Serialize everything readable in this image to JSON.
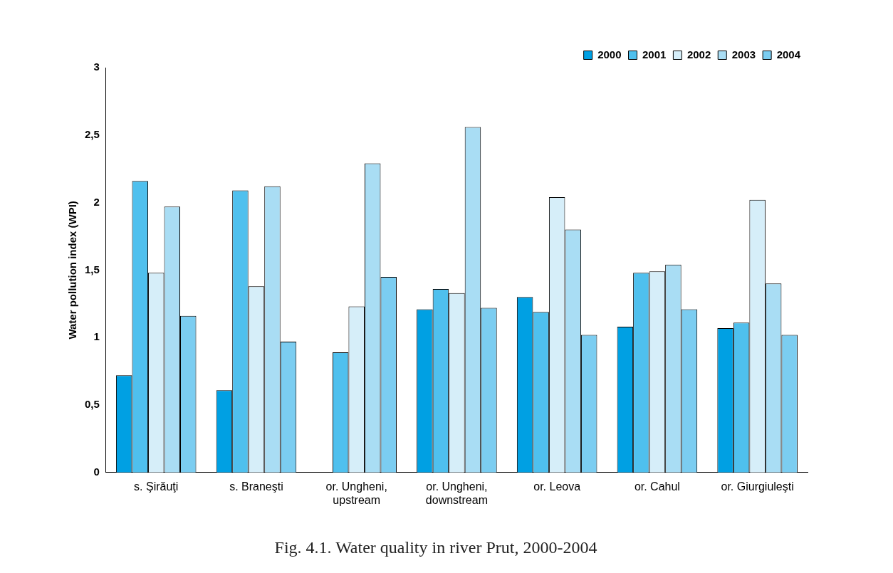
{
  "chart_data": {
    "type": "bar",
    "title": "Fig. 4.1. Water quality in river Prut, 2000-2004",
    "ylabel": "Water pollution index (WPI)",
    "categories": [
      "s. Şirăuţi",
      "s. Braneşti",
      "or. Ungheni, upstream",
      "or. Ungheni, downstream",
      "or. Leova",
      "or. Cahul",
      "or. Giurgiuleşti"
    ],
    "series": [
      {
        "name": "2000",
        "color": "#00a0e3",
        "values": [
          0.72,
          0.61,
          null,
          1.21,
          1.3,
          1.08,
          1.07
        ]
      },
      {
        "name": "2001",
        "color": "#4fc0ee",
        "values": [
          2.16,
          2.09,
          0.89,
          1.36,
          1.19,
          1.48,
          1.11
        ]
      },
      {
        "name": "2002",
        "color": "#d6eef9",
        "values": [
          1.48,
          1.38,
          1.23,
          1.33,
          2.04,
          1.49,
          2.02
        ]
      },
      {
        "name": "2003",
        "color": "#a9ddf4",
        "values": [
          1.97,
          2.12,
          2.29,
          2.56,
          1.8,
          1.54,
          1.4
        ]
      },
      {
        "name": "2004",
        "color": "#7bcdf1",
        "values": [
          1.16,
          0.97,
          1.45,
          1.22,
          1.02,
          1.21,
          1.02
        ]
      }
    ],
    "ylim": [
      0,
      3
    ],
    "yticks": [
      0,
      {
        "value": 0.5,
        "label": "0,5"
      },
      1,
      {
        "value": 1.5,
        "label": "1,5"
      },
      2,
      {
        "value": 2.5,
        "label": "2,5"
      },
      3
    ],
    "legend": "top right"
  }
}
